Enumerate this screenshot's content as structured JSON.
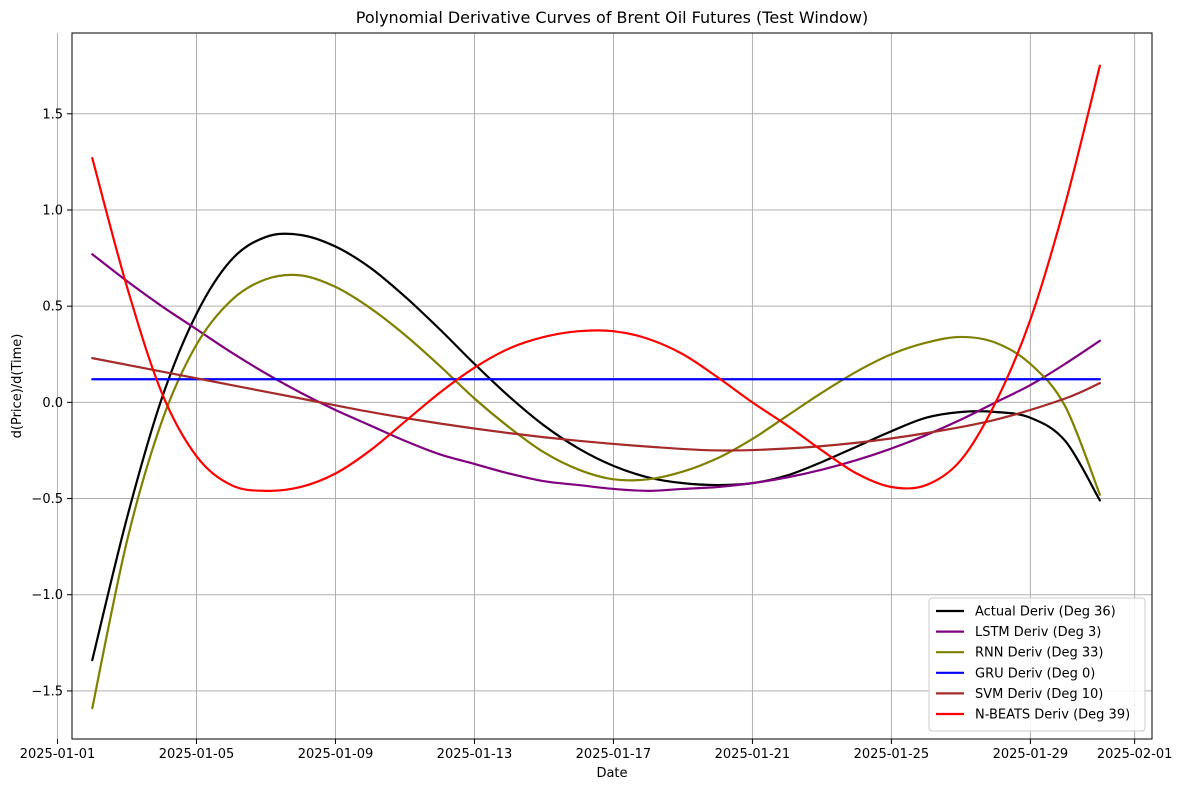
{
  "chart_data": {
    "type": "line",
    "title": "Polynomial Derivative Curves of Brent Oil Futures (Test Window)",
    "xlabel": "Date",
    "ylabel": "d(Price)/d(Time)",
    "x_type": "date",
    "xlim": [
      "2025-01-01T10:00",
      "2025-02-01T12:00"
    ],
    "ylim": [
      -1.75,
      1.92
    ],
    "x_ticks": [
      "2025-01-01",
      "2025-01-05",
      "2025-01-09",
      "2025-01-13",
      "2025-01-17",
      "2025-01-21",
      "2025-01-25",
      "2025-01-29",
      "2025-02-01"
    ],
    "y_ticks": [
      -1.5,
      -1.0,
      -0.5,
      0.0,
      0.5,
      1.0,
      1.5
    ],
    "y_tick_labels": [
      "−1.5",
      "−1.0",
      "−0.5",
      "0.0",
      "0.5",
      "1.0",
      "1.5"
    ],
    "grid": true,
    "legend_position": "lower-right",
    "series": [
      {
        "name": "Actual Deriv (Deg 36)",
        "color": "#000000",
        "x": [
          "2025-01-02",
          "2025-01-03",
          "2025-01-04",
          "2025-01-05",
          "2025-01-06",
          "2025-01-07",
          "2025-01-08",
          "2025-01-09",
          "2025-01-10",
          "2025-01-11",
          "2025-01-12",
          "2025-01-13",
          "2025-01-14",
          "2025-01-15",
          "2025-01-16",
          "2025-01-17",
          "2025-01-18",
          "2025-01-19",
          "2025-01-20",
          "2025-01-21",
          "2025-01-22",
          "2025-01-23",
          "2025-01-24",
          "2025-01-25",
          "2025-01-26",
          "2025-01-27",
          "2025-01-28",
          "2025-01-29",
          "2025-01-30",
          "2025-01-31"
        ],
        "y": [
          -1.34,
          -0.6,
          0.02,
          0.46,
          0.74,
          0.86,
          0.87,
          0.81,
          0.7,
          0.55,
          0.38,
          0.2,
          0.03,
          -0.12,
          -0.24,
          -0.33,
          -0.39,
          -0.42,
          -0.43,
          -0.42,
          -0.38,
          -0.31,
          -0.23,
          -0.15,
          -0.08,
          -0.05,
          -0.05,
          -0.08,
          -0.2,
          -0.51
        ]
      },
      {
        "name": "LSTM Deriv (Deg 3)",
        "color": "#800080",
        "x": [
          "2025-01-02",
          "2025-01-03",
          "2025-01-04",
          "2025-01-05",
          "2025-01-06",
          "2025-01-07",
          "2025-01-08",
          "2025-01-09",
          "2025-01-10",
          "2025-01-11",
          "2025-01-12",
          "2025-01-13",
          "2025-01-14",
          "2025-01-15",
          "2025-01-16",
          "2025-01-17",
          "2025-01-18",
          "2025-01-19",
          "2025-01-20",
          "2025-01-21",
          "2025-01-22",
          "2025-01-23",
          "2025-01-24",
          "2025-01-25",
          "2025-01-26",
          "2025-01-27",
          "2025-01-28",
          "2025-01-29",
          "2025-01-30",
          "2025-01-31"
        ],
        "y": [
          0.77,
          0.63,
          0.5,
          0.38,
          0.26,
          0.15,
          0.05,
          -0.04,
          -0.12,
          -0.2,
          -0.27,
          -0.32,
          -0.37,
          -0.41,
          -0.43,
          -0.45,
          -0.46,
          -0.45,
          -0.44,
          -0.42,
          -0.39,
          -0.35,
          -0.3,
          -0.24,
          -0.17,
          -0.09,
          0.0,
          0.09,
          0.2,
          0.32
        ]
      },
      {
        "name": "RNN Deriv (Deg 33)",
        "color": "#808000",
        "x": [
          "2025-01-02",
          "2025-01-03",
          "2025-01-04",
          "2025-01-05",
          "2025-01-06",
          "2025-01-07",
          "2025-01-08",
          "2025-01-09",
          "2025-01-10",
          "2025-01-11",
          "2025-01-12",
          "2025-01-13",
          "2025-01-14",
          "2025-01-15",
          "2025-01-16",
          "2025-01-17",
          "2025-01-18",
          "2025-01-19",
          "2025-01-20",
          "2025-01-21",
          "2025-01-22",
          "2025-01-23",
          "2025-01-24",
          "2025-01-25",
          "2025-01-26",
          "2025-01-27",
          "2025-01-28",
          "2025-01-29",
          "2025-01-30",
          "2025-01-31"
        ],
        "y": [
          -1.59,
          -0.72,
          -0.1,
          0.3,
          0.53,
          0.64,
          0.66,
          0.6,
          0.49,
          0.35,
          0.19,
          0.02,
          -0.13,
          -0.26,
          -0.35,
          -0.4,
          -0.4,
          -0.36,
          -0.29,
          -0.19,
          -0.07,
          0.05,
          0.16,
          0.25,
          0.31,
          0.34,
          0.31,
          0.2,
          -0.02,
          -0.48
        ]
      },
      {
        "name": "GRU Deriv (Deg 0)",
        "color": "#0000ff",
        "x": [
          "2025-01-02",
          "2025-01-31"
        ],
        "y": [
          0.12,
          0.12
        ]
      },
      {
        "name": "SVM Deriv (Deg 10)",
        "color": "#a52a2a",
        "x": [
          "2025-01-02",
          "2025-01-04",
          "2025-01-06",
          "2025-01-08",
          "2025-01-10",
          "2025-01-12",
          "2025-01-14",
          "2025-01-16",
          "2025-01-18",
          "2025-01-20",
          "2025-01-22",
          "2025-01-24",
          "2025-01-26",
          "2025-01-28",
          "2025-01-30",
          "2025-01-31"
        ],
        "y": [
          0.23,
          0.16,
          0.09,
          0.02,
          -0.05,
          -0.11,
          -0.16,
          -0.2,
          -0.23,
          -0.25,
          -0.24,
          -0.21,
          -0.16,
          -0.09,
          0.02,
          0.1
        ]
      },
      {
        "name": "N-BEATS Deriv (Deg 39)",
        "color": "#ff0000",
        "x": [
          "2025-01-02",
          "2025-01-03",
          "2025-01-04",
          "2025-01-05",
          "2025-01-06",
          "2025-01-07",
          "2025-01-08",
          "2025-01-09",
          "2025-01-10",
          "2025-01-11",
          "2025-01-12",
          "2025-01-13",
          "2025-01-14",
          "2025-01-15",
          "2025-01-16",
          "2025-01-17",
          "2025-01-18",
          "2025-01-19",
          "2025-01-20",
          "2025-01-21",
          "2025-01-22",
          "2025-01-23",
          "2025-01-24",
          "2025-01-25",
          "2025-01-26",
          "2025-01-27",
          "2025-01-28",
          "2025-01-29",
          "2025-01-30",
          "2025-01-31"
        ],
        "y": [
          1.27,
          0.6,
          0.05,
          -0.28,
          -0.43,
          -0.46,
          -0.44,
          -0.37,
          -0.25,
          -0.1,
          0.05,
          0.18,
          0.28,
          0.34,
          0.37,
          0.37,
          0.33,
          0.25,
          0.13,
          0.0,
          -0.12,
          -0.25,
          -0.37,
          -0.44,
          -0.43,
          -0.3,
          0.0,
          0.43,
          1.03,
          1.75
        ]
      }
    ]
  }
}
